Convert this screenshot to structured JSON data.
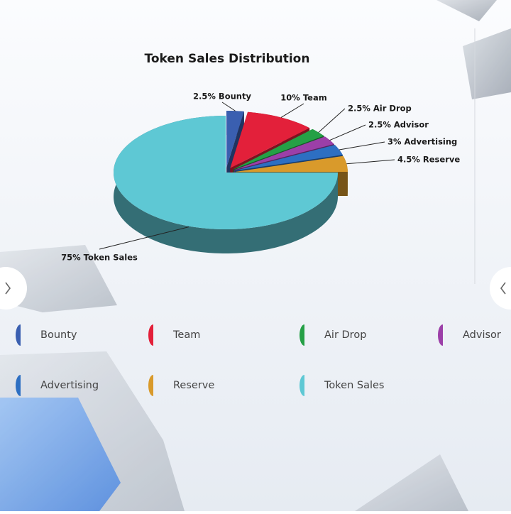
{
  "chart_data": {
    "type": "pie",
    "title": "Token Sales Distribution",
    "categories": [
      "Bounty",
      "Team",
      "Air Drop",
      "Advisor",
      "Advertising",
      "Reserve",
      "Token Sales"
    ],
    "values": [
      2.5,
      10,
      2.5,
      2.5,
      3,
      4.5,
      75
    ],
    "value_labels": [
      "2.5% Bounty",
      "10% Team",
      "2.5% Air Drop",
      "2.5% Advisor",
      "3% Advertising",
      "4.5% Reserve",
      "75% Token Sales"
    ],
    "colors": [
      "#3a5fb0",
      "#e3203a",
      "#25a046",
      "#9c3fa8",
      "#2d6fc2",
      "#d99a2b",
      "#5ec8d4"
    ],
    "legend": "bottom"
  }
}
